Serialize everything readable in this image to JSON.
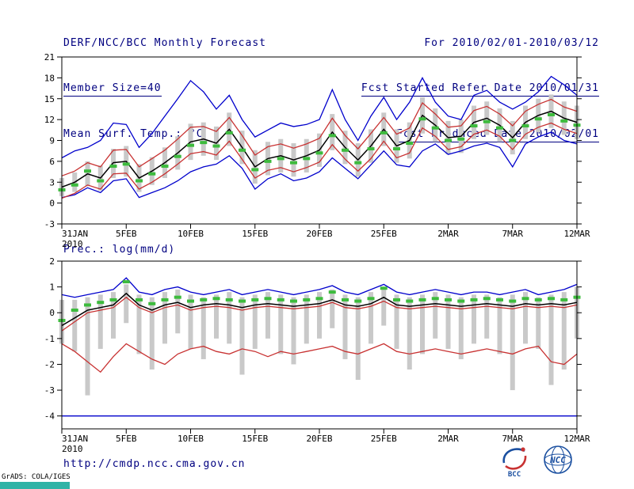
{
  "header": {
    "title": "DERF/NCC/BCC Monthly Forecast",
    "member_size": "Member Size=40",
    "temp_panel_title": "Mean Surf. Temp.: °C",
    "for_range": "For 2010/02/01-2010/03/12",
    "fcst_started": "Fcst Started Refer Date 2010/01/31",
    "fcst_produced": "Fcst Produced Date 2010/02/01"
  },
  "footer": {
    "url": "http://cmdp.ncc.cma.gov.cn",
    "credit": "GrADS: COLA/IGES",
    "bcc_label": "BCC",
    "ncc_label": "NCC"
  },
  "colors": {
    "header_text": "#000080",
    "envelope_blue": "#0000cc",
    "quartile_red": "#c83232",
    "median_black": "#000000",
    "ensemble_green": "#3dbb3d",
    "spread_gray": "#c9c9c9",
    "logo_blue": "#1a4fa0",
    "logo_red": "#c83232",
    "teal_bar": "#2fb3a6"
  },
  "chart_data": [
    {
      "id": "temperature",
      "type": "line",
      "title": "Mean Surf. Temp.: °C",
      "ylabel": "°C",
      "ylim": [
        -3,
        21
      ],
      "yticks": [
        -3,
        0,
        3,
        6,
        9,
        12,
        15,
        18,
        21
      ],
      "xlim": [
        0,
        40
      ],
      "x_step_days": 1,
      "xticks": {
        "positions": [
          0,
          5,
          10,
          15,
          20,
          25,
          30,
          35,
          40
        ],
        "labels": [
          "31JAN",
          "5FEB",
          "10FEB",
          "15FEB",
          "20FEB",
          "25FEB",
          "2MAR",
          "7MAR",
          "12MAR"
        ],
        "sublabel": "2010"
      },
      "bars": {
        "name": "ensemble-spread",
        "color": "#c9c9c9",
        "low": [
          1.0,
          1.6,
          2.4,
          1.8,
          3.6,
          3.8,
          1.6,
          2.6,
          3.6,
          4.8,
          6.2,
          6.8,
          6.2,
          8.2,
          5.6,
          2.8,
          4.0,
          4.4,
          3.8,
          4.4,
          5.2,
          7.6,
          5.6,
          3.8,
          5.8,
          8.2,
          5.8,
          6.4,
          10.0,
          8.8,
          7.0,
          7.2,
          9.2,
          9.8,
          8.8,
          7.0,
          9.2,
          10.2,
          10.8,
          9.8,
          9.2
        ],
        "high": [
          3.6,
          4.4,
          6.0,
          5.4,
          7.8,
          8.2,
          5.6,
          6.6,
          8.0,
          9.6,
          11.4,
          11.6,
          11.0,
          13.0,
          10.4,
          7.6,
          8.8,
          9.2,
          8.6,
          9.2,
          10.0,
          12.8,
          10.4,
          8.6,
          10.6,
          13.0,
          10.6,
          11.6,
          15.2,
          13.6,
          11.8,
          12.0,
          14.0,
          14.6,
          13.6,
          11.8,
          14.0,
          15.0,
          15.6,
          14.6,
          14.0
        ]
      },
      "series": [
        {
          "name": "ensemble-max",
          "color": "#0000cc",
          "style": "solid",
          "values": [
            6.5,
            7.5,
            8.0,
            9.0,
            11.5,
            11.3,
            8.0,
            10.0,
            12.5,
            15.0,
            17.6,
            16.0,
            13.5,
            15.5,
            12.0,
            9.5,
            10.5,
            11.5,
            11.0,
            11.3,
            12.0,
            16.3,
            12.0,
            9.0,
            12.5,
            15.2,
            12.0,
            14.5,
            18.0,
            14.5,
            12.5,
            12.0,
            15.5,
            16.2,
            14.5,
            13.5,
            14.5,
            16.0,
            18.2,
            17.0,
            15.5
          ]
        },
        {
          "name": "ensemble-min",
          "color": "#0000cc",
          "style": "solid",
          "values": [
            0.8,
            1.2,
            2.2,
            1.5,
            3.2,
            3.5,
            0.8,
            1.5,
            2.2,
            3.2,
            4.5,
            5.2,
            5.6,
            6.8,
            5.0,
            2.0,
            3.5,
            4.2,
            3.2,
            3.6,
            4.5,
            6.5,
            5.0,
            3.5,
            5.5,
            7.5,
            5.5,
            5.2,
            7.5,
            8.5,
            7.0,
            7.5,
            8.2,
            8.6,
            8.0,
            5.2,
            8.5,
            9.5,
            10.2,
            9.0,
            8.5
          ]
        },
        {
          "name": "upper-quartile",
          "color": "#c83232",
          "style": "solid",
          "values": [
            3.9,
            4.6,
            5.8,
            5.2,
            7.6,
            7.7,
            5.2,
            6.4,
            7.6,
            9.2,
            10.9,
            11.0,
            10.3,
            12.3,
            9.7,
            6.9,
            8.1,
            8.5,
            7.9,
            8.5,
            9.3,
            12.2,
            9.7,
            7.8,
            10.0,
            12.3,
            9.9,
            10.8,
            14.4,
            12.8,
            10.9,
            11.1,
            13.3,
            13.9,
            12.8,
            11.1,
            13.2,
            14.2,
            14.9,
            13.8,
            13.2
          ]
        },
        {
          "name": "lower-quartile",
          "color": "#c83232",
          "style": "solid",
          "values": [
            0.7,
            1.4,
            2.6,
            2.0,
            4.2,
            4.3,
            2.0,
            3.0,
            4.2,
            5.6,
            7.1,
            7.4,
            6.9,
            8.9,
            6.3,
            3.6,
            4.7,
            5.1,
            4.5,
            5.1,
            5.9,
            8.4,
            6.3,
            4.6,
            6.4,
            8.9,
            6.5,
            7.2,
            10.8,
            9.6,
            7.7,
            8.1,
            9.9,
            10.5,
            9.6,
            7.7,
            9.9,
            10.9,
            11.5,
            10.6,
            10.0
          ]
        },
        {
          "name": "median",
          "color": "#000000",
          "style": "solid",
          "values": [
            2.3,
            3.0,
            4.2,
            3.6,
            5.8,
            6.0,
            3.6,
            4.6,
            5.8,
            7.2,
            8.8,
            9.2,
            8.6,
            10.6,
            8.0,
            5.2,
            6.4,
            6.8,
            6.2,
            6.8,
            7.6,
            10.2,
            8.0,
            6.2,
            8.2,
            10.6,
            8.2,
            9.0,
            12.6,
            11.2,
            9.4,
            9.6,
            11.6,
            12.2,
            11.2,
            9.4,
            11.6,
            12.6,
            13.2,
            12.2,
            11.6
          ]
        },
        {
          "name": "ensemble-mean",
          "color": "#3dbb3d",
          "style": "segments",
          "values": [
            1.9,
            2.6,
            4.6,
            3.2,
            5.3,
            5.6,
            3.2,
            4.2,
            5.3,
            6.7,
            8.3,
            8.7,
            8.2,
            10.1,
            7.6,
            4.8,
            6.0,
            6.4,
            5.8,
            6.4,
            7.2,
            9.7,
            7.6,
            5.8,
            7.8,
            10.1,
            7.8,
            8.6,
            12.1,
            10.8,
            9.0,
            9.2,
            11.1,
            11.7,
            10.8,
            9.0,
            11.1,
            12.1,
            12.7,
            11.8,
            11.2
          ]
        }
      ]
    },
    {
      "id": "precipitation",
      "type": "line",
      "title": "Prec.: log(mm/d)",
      "ylabel": "log(mm/d)",
      "ylim": [
        -4.5,
        2
      ],
      "yticks": [
        -4,
        -3,
        -2,
        -1,
        0,
        1,
        2
      ],
      "xlim": [
        0,
        40
      ],
      "x_step_days": 1,
      "xticks": {
        "positions": [
          0,
          5,
          10,
          15,
          20,
          25,
          30,
          35,
          40
        ],
        "labels": [
          "31JAN",
          "5FEB",
          "10FEB",
          "15FEB",
          "20FEB",
          "25FEB",
          "2MAR",
          "7MAR",
          "12MAR"
        ],
        "sublabel": "2010"
      },
      "bars": {
        "name": "ensemble-spread",
        "color": "#c9c9c9",
        "low": [
          -1.2,
          -1.5,
          -3.2,
          -1.4,
          -1.0,
          -0.4,
          -1.6,
          -2.2,
          -1.2,
          -0.8,
          -1.4,
          -1.8,
          -1.0,
          -1.2,
          -2.4,
          -1.4,
          -1.0,
          -1.6,
          -2.0,
          -1.2,
          -1.0,
          -0.6,
          -1.8,
          -2.6,
          -1.2,
          -0.5,
          -1.4,
          -2.2,
          -1.6,
          -1.0,
          -1.4,
          -1.8,
          -1.2,
          -1.0,
          -1.6,
          -3.0,
          -1.2,
          -1.4,
          -2.8,
          -2.2,
          -1.0
        ],
        "high": [
          0.5,
          0.5,
          0.6,
          0.7,
          0.8,
          1.1,
          0.7,
          0.6,
          0.8,
          0.9,
          0.7,
          0.6,
          0.7,
          0.8,
          0.6,
          0.7,
          0.8,
          0.7,
          0.6,
          0.7,
          0.8,
          0.9,
          0.7,
          0.6,
          0.8,
          1.0,
          0.7,
          0.6,
          0.7,
          0.8,
          0.7,
          0.6,
          0.7,
          0.7,
          0.6,
          0.7,
          0.8,
          0.6,
          0.7,
          0.8,
          1.0
        ]
      },
      "series": [
        {
          "name": "ensemble-max",
          "color": "#0000cc",
          "style": "solid",
          "values": [
            0.7,
            0.6,
            0.7,
            0.8,
            0.9,
            1.35,
            0.8,
            0.7,
            0.9,
            1.0,
            0.8,
            0.7,
            0.8,
            0.9,
            0.7,
            0.8,
            0.9,
            0.8,
            0.7,
            0.8,
            0.9,
            1.05,
            0.8,
            0.7,
            0.9,
            1.1,
            0.8,
            0.7,
            0.8,
            0.9,
            0.8,
            0.7,
            0.8,
            0.8,
            0.7,
            0.8,
            0.9,
            0.7,
            0.8,
            0.9,
            1.1
          ]
        },
        {
          "name": "ensemble-min",
          "color": "#0000cc",
          "style": "solid",
          "values": [
            -4.0,
            -4.0,
            -4.0,
            -4.0,
            -4.0,
            -4.0,
            -4.0,
            -4.0,
            -4.0,
            -4.0,
            -4.0,
            -4.0,
            -4.0,
            -4.0,
            -4.0,
            -4.0,
            -4.0,
            -4.0,
            -4.0,
            -4.0,
            -4.0,
            -4.0,
            -4.0,
            -4.0,
            -4.0,
            -4.0,
            -4.0,
            -4.0,
            -4.0,
            -4.0,
            -4.0,
            -4.0,
            -4.0,
            -4.0,
            -4.0,
            -4.0,
            -4.0,
            -4.0,
            -4.0,
            -4.0,
            -4.0
          ]
        },
        {
          "name": "upper-quartile",
          "color": "#c83232",
          "style": "solid",
          "values": [
            -0.7,
            -0.35,
            0.0,
            0.1,
            0.2,
            0.6,
            0.2,
            0.0,
            0.2,
            0.3,
            0.1,
            0.2,
            0.25,
            0.2,
            0.1,
            0.2,
            0.25,
            0.2,
            0.15,
            0.2,
            0.25,
            0.4,
            0.2,
            0.15,
            0.25,
            0.45,
            0.2,
            0.15,
            0.2,
            0.25,
            0.2,
            0.15,
            0.2,
            0.25,
            0.2,
            0.15,
            0.25,
            0.2,
            0.25,
            0.2,
            0.3
          ]
        },
        {
          "name": "lower-quartile",
          "color": "#c83232",
          "style": "solid",
          "values": [
            -1.2,
            -1.5,
            -1.9,
            -2.3,
            -1.7,
            -1.2,
            -1.5,
            -1.8,
            -2.0,
            -1.6,
            -1.4,
            -1.3,
            -1.5,
            -1.6,
            -1.4,
            -1.5,
            -1.7,
            -1.5,
            -1.6,
            -1.5,
            -1.4,
            -1.3,
            -1.5,
            -1.6,
            -1.4,
            -1.2,
            -1.5,
            -1.6,
            -1.5,
            -1.4,
            -1.5,
            -1.6,
            -1.5,
            -1.4,
            -1.5,
            -1.6,
            -1.4,
            -1.3,
            -1.9,
            -2.0,
            -1.6
          ]
        },
        {
          "name": "median",
          "color": "#000000",
          "style": "solid",
          "values": [
            -0.5,
            -0.2,
            0.1,
            0.2,
            0.3,
            0.75,
            0.3,
            0.1,
            0.3,
            0.4,
            0.2,
            0.3,
            0.35,
            0.3,
            0.2,
            0.3,
            0.35,
            0.3,
            0.25,
            0.3,
            0.35,
            0.5,
            0.3,
            0.25,
            0.35,
            0.6,
            0.3,
            0.25,
            0.3,
            0.35,
            0.3,
            0.25,
            0.3,
            0.35,
            0.3,
            0.25,
            0.35,
            0.3,
            0.35,
            0.3,
            0.4
          ]
        },
        {
          "name": "ensemble-mean",
          "color": "#3dbb3d",
          "style": "segments",
          "values": [
            -0.3,
            0.1,
            0.3,
            0.4,
            0.5,
            1.2,
            0.5,
            0.35,
            0.5,
            0.6,
            0.45,
            0.5,
            0.55,
            0.5,
            0.45,
            0.5,
            0.55,
            0.5,
            0.45,
            0.5,
            0.55,
            0.8,
            0.5,
            0.45,
            0.55,
            0.95,
            0.5,
            0.45,
            0.5,
            0.55,
            0.5,
            0.45,
            0.5,
            0.55,
            0.5,
            0.45,
            0.55,
            0.5,
            0.55,
            0.5,
            0.6
          ]
        }
      ]
    }
  ]
}
